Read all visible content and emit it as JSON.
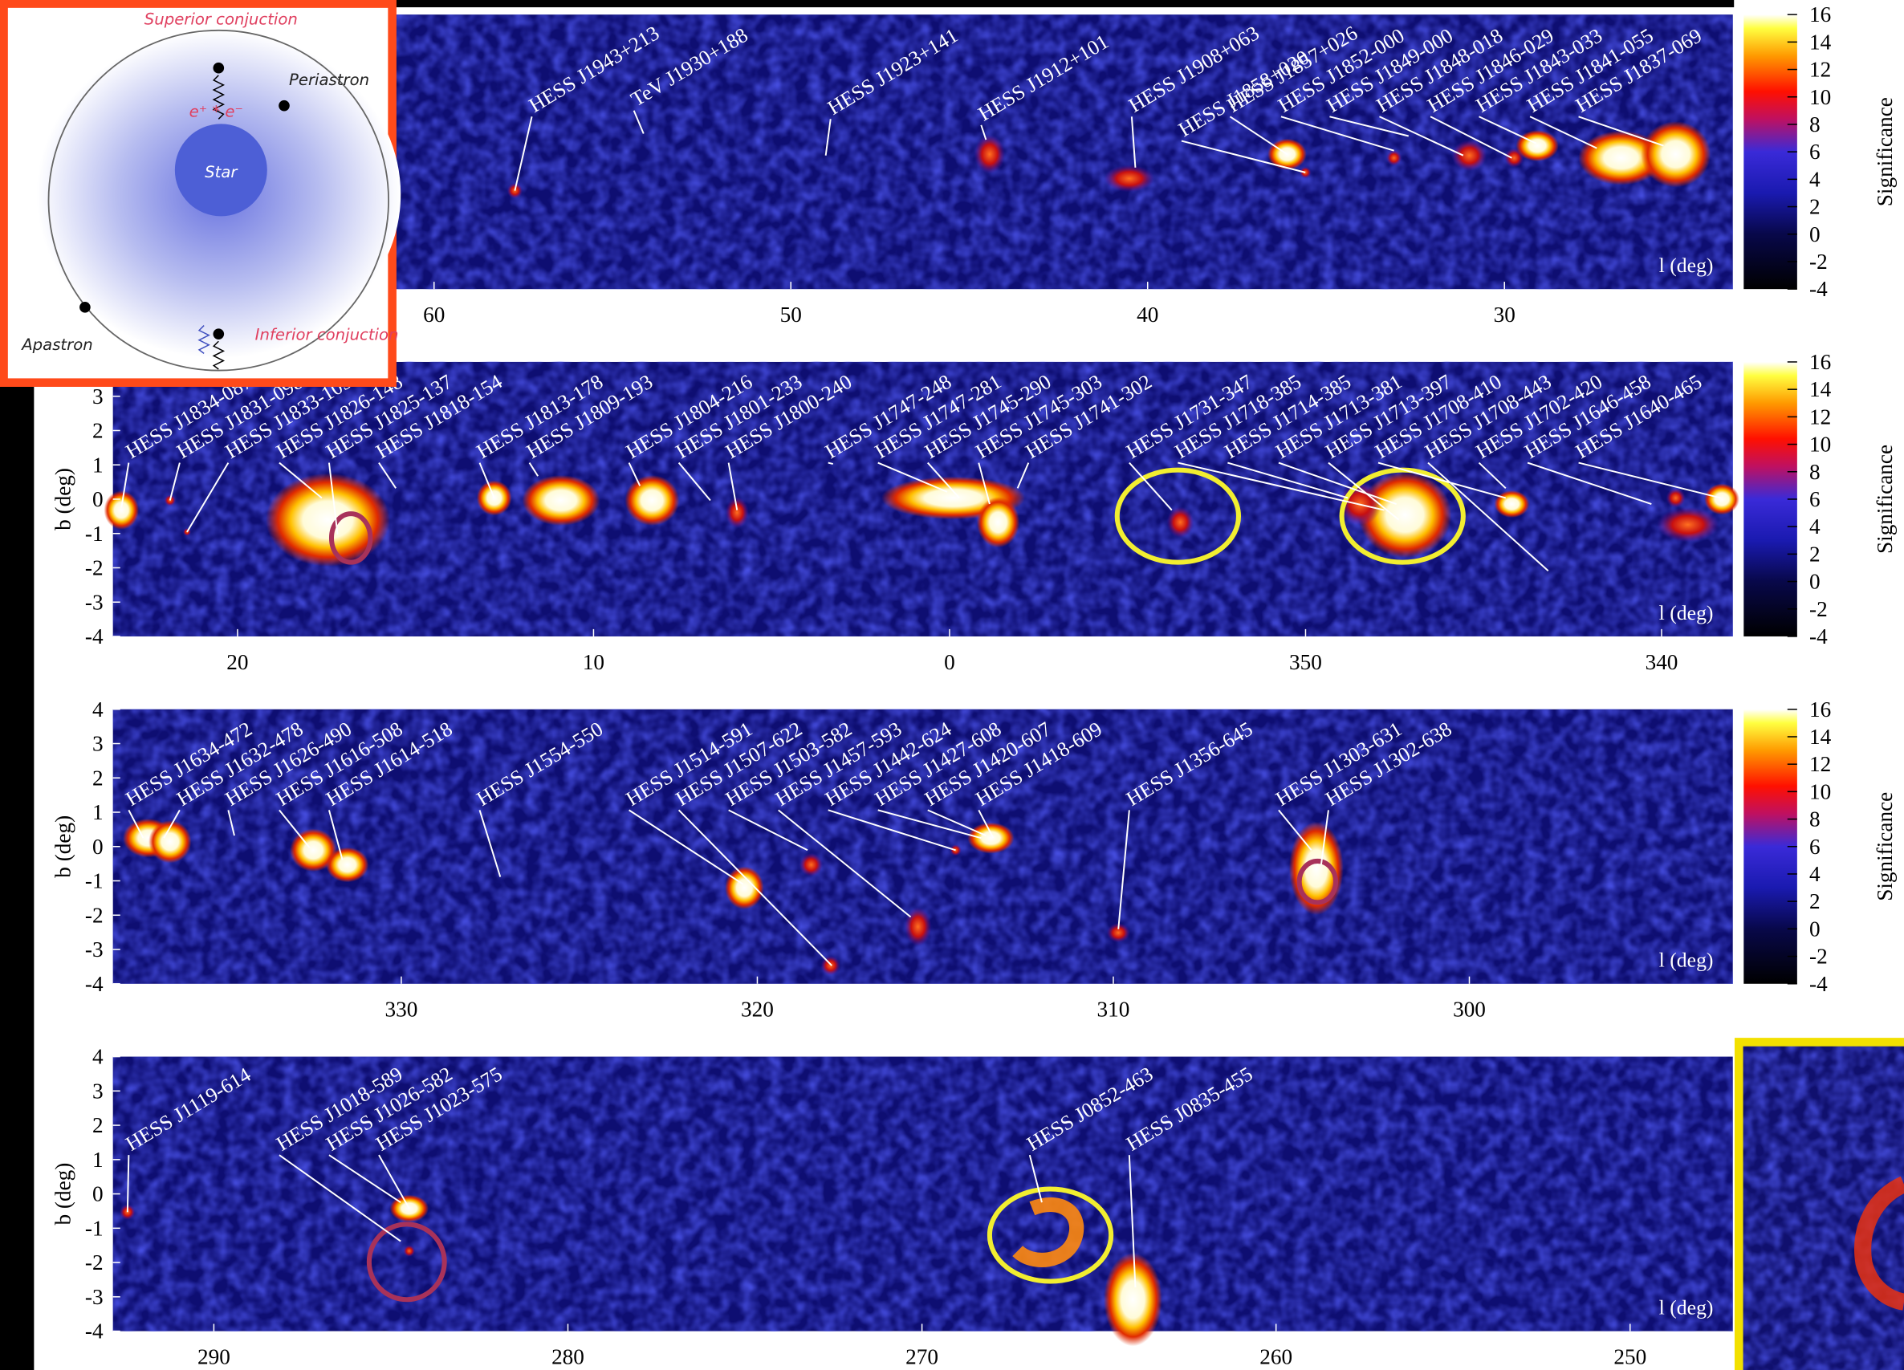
{
  "inset": {
    "superior": "Superior conjuction",
    "periastron": "Periastron",
    "pair": "e⁺ * e⁻",
    "star": "Star",
    "apastron": "Apastron",
    "inferior": "Inferior conjuction"
  },
  "panels": [
    {
      "xlabel": "l (deg)",
      "xlim": [
        69,
        23.6
      ],
      "ylim": [
        -4,
        4
      ],
      "xticks": [
        60,
        50,
        40,
        30
      ],
      "colorbar": {
        "label": "Significance",
        "lim": [
          -4,
          16
        ],
        "ticks": [
          16,
          14,
          12,
          10,
          8,
          6,
          4,
          2,
          0,
          -2,
          -4
        ]
      },
      "sources": [
        "HESS J1943+213",
        "TeV J1930+188",
        "HESS J1923+141",
        "HESS J1912+101",
        "HESS J1908+063",
        "HESS J1858+020",
        "HESS J1857+026",
        "HESS J1852-000",
        "HESS J1849-000",
        "HESS J1848-018",
        "HESS J1846-029",
        "HESS J1843-033",
        "HESS J1841-055",
        "HESS J1837-069"
      ]
    },
    {
      "xlabel": "l (deg)",
      "ylabel": "b (deg)",
      "xlim": [
        23.5,
        -22
      ],
      "ylim": [
        -4,
        4
      ],
      "xticks": [
        20,
        10,
        0,
        350,
        340
      ],
      "yticks": [
        3,
        2,
        1,
        0,
        -1,
        -2,
        -3,
        -4
      ],
      "colorbar": {
        "label": "Significance",
        "lim": [
          -4,
          16
        ],
        "ticks": [
          16,
          14,
          12,
          10,
          8,
          6,
          4,
          2,
          0,
          -2,
          -4
        ]
      },
      "sources": [
        "HESS J1834-087",
        "HESS J1831-098",
        "HESS J1833-105",
        "HESS J1826-148",
        "HESS J1825-137",
        "HESS J1818-154",
        "HESS J1813-178",
        "HESS J1809-193",
        "HESS J1804-216",
        "HESS J1801-233",
        "HESS J1800-240",
        "HESS J1747-248",
        "HESS J1747-281",
        "HESS J1745-290",
        "HESS J1745-303",
        "HESS J1741-302",
        "HESS J1731-347",
        "HESS J1718-385",
        "HESS J1714-385",
        "HESS J1713-381",
        "HESS J1713-397",
        "HESS J1708-410",
        "HESS J1708-443",
        "HESS J1702-420",
        "HESS J1646-458",
        "HESS J1640-465"
      ]
    },
    {
      "xlabel": "l (deg)",
      "ylabel": "b (deg)",
      "xlim": [
        338.1,
        292.6
      ],
      "ylim": [
        -4,
        4
      ],
      "xticks": [
        330,
        320,
        310,
        300
      ],
      "yticks": [
        4,
        3,
        2,
        1,
        0,
        -1,
        -2,
        -3,
        -4
      ],
      "colorbar": {
        "label": "Significance",
        "lim": [
          -4,
          16
        ],
        "ticks": [
          16,
          14,
          12,
          10,
          8,
          6,
          4,
          2,
          0,
          -2,
          -4
        ]
      },
      "sources": [
        "HESS J1634-472",
        "HESS J1632-478",
        "HESS J1626-490",
        "HESS J1616-508",
        "HESS J1614-518",
        "HESS J1554-550",
        "HESS J1514-591",
        "HESS J1507-622",
        "HESS J1503-582",
        "HESS J1457-593",
        "HESS J1442-624",
        "HESS J1427-608",
        "HESS J1420-607",
        "HESS J1418-609",
        "HESS J1356-645",
        "HESS J1303-631",
        "HESS J1302-638"
      ]
    },
    {
      "xlabel": "l (deg)",
      "ylabel": "b (deg)",
      "xlim": [
        292.85,
        247.1
      ],
      "ylim": [
        -4,
        4
      ],
      "xticks": [
        290,
        280,
        270,
        260,
        250
      ],
      "yticks": [
        4,
        3,
        2,
        1,
        0,
        -1,
        -2,
        -3,
        -4
      ],
      "sources": [
        "HESS J1119-614",
        "HESS J1018-589",
        "HESS J1026-582",
        "HESS J1023-575",
        "HESS J0852-463",
        "HESS J0835-455"
      ]
    }
  ]
}
